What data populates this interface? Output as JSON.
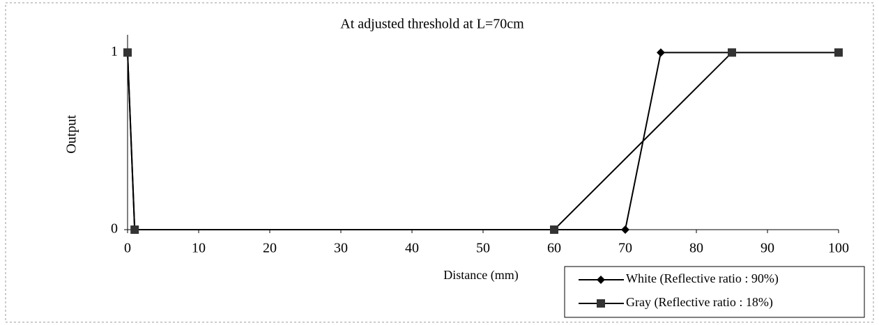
{
  "chart_data": {
    "type": "line",
    "title": "At adjusted threshold at L=70cm",
    "x_label": "Distance (mm)",
    "y_label": "Output",
    "xlim": [
      0,
      100
    ],
    "xticks": [
      0,
      10,
      20,
      30,
      40,
      50,
      60,
      70,
      80,
      90,
      100
    ],
    "ylim": [
      0,
      1.1
    ],
    "yticks": [
      0,
      1
    ],
    "series": [
      {
        "name": "White (Reflective ratio : 90%)",
        "color": "#000000",
        "marker": "diamond",
        "x": [
          0,
          1,
          60,
          70,
          75,
          85,
          100
        ],
        "values": [
          1,
          0,
          0,
          0,
          1,
          1,
          1
        ]
      },
      {
        "name": "Gray (Reflective ratio : 18%)",
        "color": "#000000",
        "marker": "square",
        "x": [
          0,
          1,
          60,
          85,
          100
        ],
        "values": [
          1,
          0,
          0,
          1,
          1
        ]
      }
    ]
  }
}
